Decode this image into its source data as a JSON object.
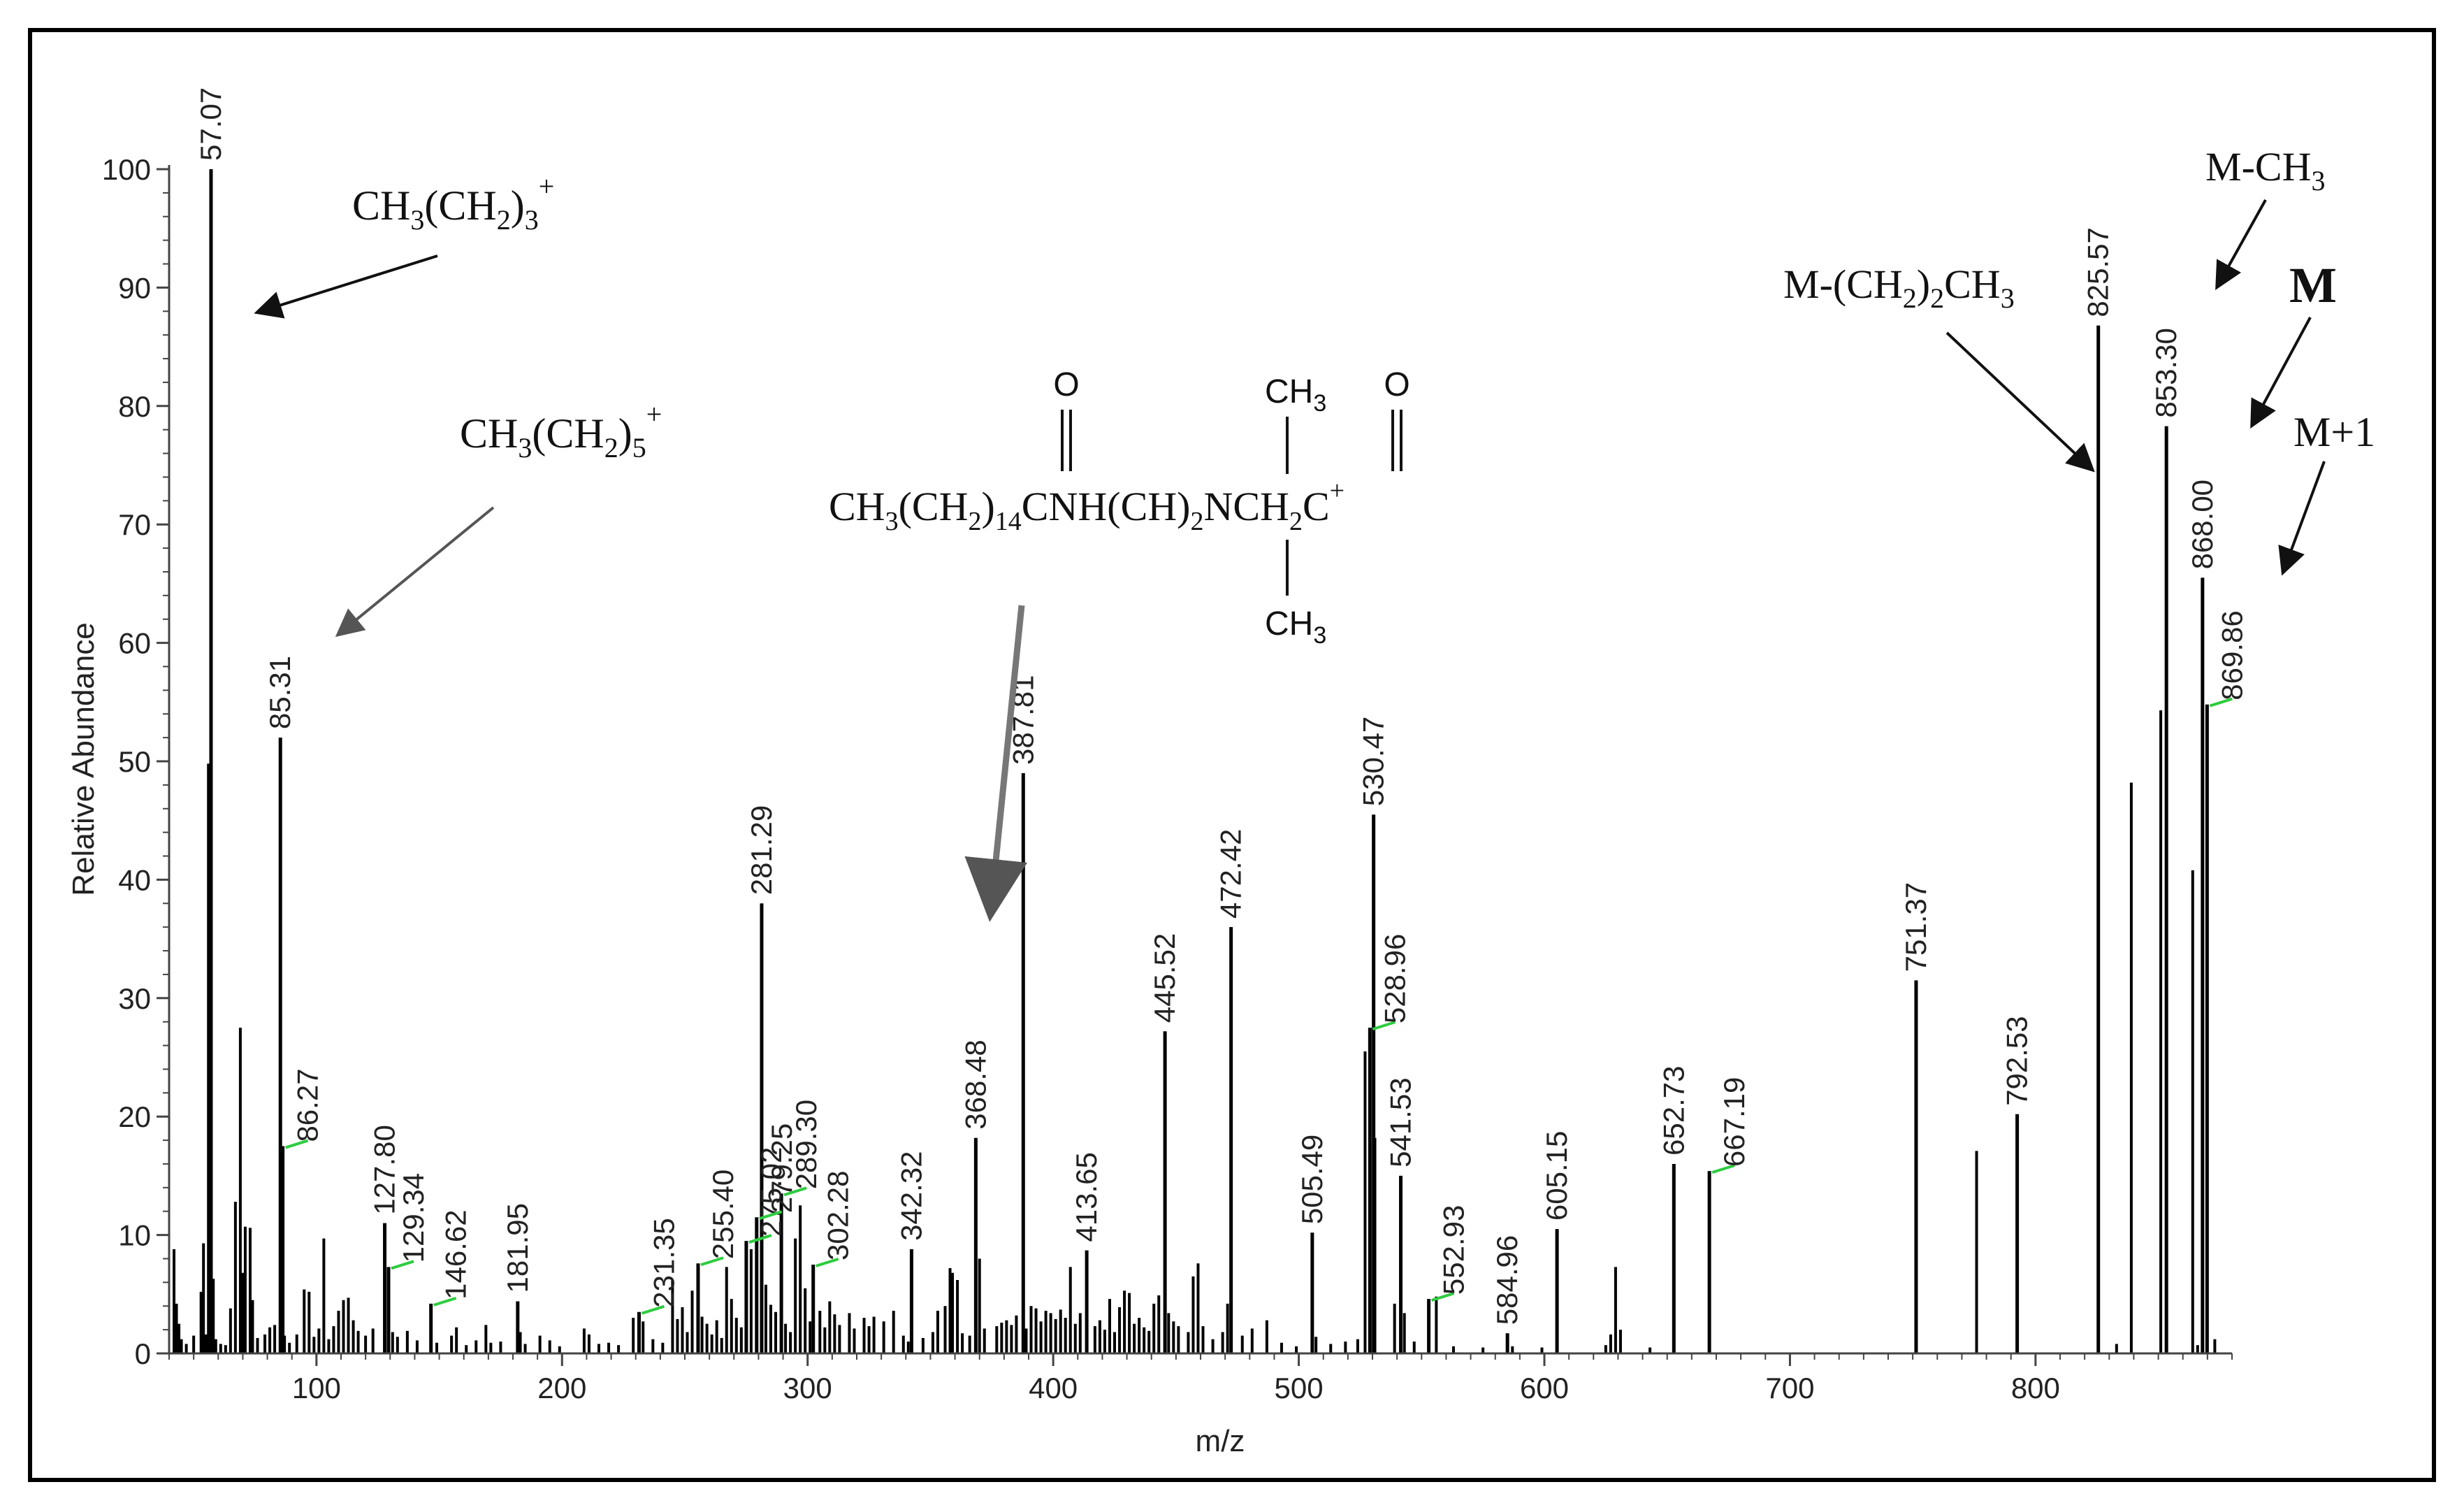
{
  "chart_data": {
    "type": "bar",
    "subtype": "mass-spectrum-stick",
    "xlabel": "m/z",
    "ylabel": "Relative Abundance",
    "xlim": [
      40,
      880
    ],
    "ylim": [
      0,
      100
    ],
    "x_ticks": [
      100,
      200,
      300,
      400,
      500,
      600,
      700,
      800
    ],
    "y_ticks": [
      0,
      10,
      20,
      30,
      40,
      50,
      60,
      70,
      80,
      90,
      100
    ],
    "labeled_peaks": [
      {
        "x": 57.07,
        "y": 100,
        "label": "57.07"
      },
      {
        "x": 85.31,
        "y": 52,
        "label": "85.31"
      },
      {
        "x": 86.27,
        "y": 17.5,
        "label": "86.27",
        "leader": true
      },
      {
        "x": 127.8,
        "y": 11,
        "label": "127.80"
      },
      {
        "x": 129.34,
        "y": 7.3,
        "label": "129.34",
        "leader": true
      },
      {
        "x": 146.62,
        "y": 4.2,
        "label": "146.62",
        "leader": true
      },
      {
        "x": 181.95,
        "y": 4.4,
        "label": "181.95"
      },
      {
        "x": 231.35,
        "y": 3.5,
        "label": "231.35",
        "leader": true
      },
      {
        "x": 255.4,
        "y": 7.6,
        "label": "255.40",
        "leader": true
      },
      {
        "x": 275.02,
        "y": 9.5,
        "label": "275.02",
        "leader": true
      },
      {
        "x": 279.25,
        "y": 11.5,
        "label": "279.25",
        "leader": true
      },
      {
        "x": 281.29,
        "y": 38,
        "label": "281.29"
      },
      {
        "x": 289.3,
        "y": 13.5,
        "label": "289.30",
        "leader": true
      },
      {
        "x": 302.28,
        "y": 7.5,
        "label": "302.28",
        "leader": true
      },
      {
        "x": 342.32,
        "y": 8.8,
        "label": "342.32"
      },
      {
        "x": 368.48,
        "y": 18.2,
        "label": "368.48"
      },
      {
        "x": 387.81,
        "y": 49,
        "label": "387.81"
      },
      {
        "x": 413.65,
        "y": 8.7,
        "label": "413.65"
      },
      {
        "x": 445.52,
        "y": 27.2,
        "label": "445.52"
      },
      {
        "x": 472.42,
        "y": 36,
        "label": "472.42"
      },
      {
        "x": 505.49,
        "y": 10.2,
        "label": "505.49"
      },
      {
        "x": 528.96,
        "y": 27.5,
        "label": "528.96",
        "leader": true
      },
      {
        "x": 530.47,
        "y": 45.5,
        "label": "530.47"
      },
      {
        "x": 541.53,
        "y": 15,
        "label": "541.53"
      },
      {
        "x": 552.93,
        "y": 4.6,
        "label": "552.93",
        "leader": true
      },
      {
        "x": 584.96,
        "y": 1.7,
        "label": "584.96"
      },
      {
        "x": 605.15,
        "y": 10.5,
        "label": "605.15"
      },
      {
        "x": 652.73,
        "y": 16,
        "label": "652.73"
      },
      {
        "x": 667.19,
        "y": 15.4,
        "label": "667.19",
        "leader": true
      },
      {
        "x": 751.37,
        "y": 31.5,
        "label": "751.37"
      },
      {
        "x": 792.53,
        "y": 20.2,
        "label": "792.53"
      },
      {
        "x": 825.57,
        "y": 86.8,
        "label": "825.57"
      },
      {
        "x": 853.3,
        "y": 78.3,
        "label": "853.30"
      },
      {
        "x": 868.0,
        "y": 65.5,
        "label": "868.00"
      },
      {
        "x": 869.86,
        "y": 54.8,
        "label": "869.86",
        "leader": true
      }
    ],
    "unlabeled_peaks": [
      [
        42,
        8.8
      ],
      [
        43,
        4.2
      ],
      [
        44,
        2.5
      ],
      [
        45,
        1.2
      ],
      [
        47,
        0.8
      ],
      [
        50,
        1.5
      ],
      [
        53,
        5.2
      ],
      [
        54,
        9.3
      ],
      [
        55,
        1.6
      ],
      [
        56,
        49.8
      ],
      [
        58,
        6.3
      ],
      [
        59,
        1.2
      ],
      [
        61,
        0.8
      ],
      [
        63,
        0.7
      ],
      [
        65,
        3.8
      ],
      [
        67,
        12.8
      ],
      [
        69,
        27.5
      ],
      [
        70,
        6.8
      ],
      [
        71,
        10.7
      ],
      [
        73,
        10.6
      ],
      [
        74,
        4.5
      ],
      [
        76,
        1.3
      ],
      [
        79,
        1.6
      ],
      [
        81,
        2.2
      ],
      [
        83,
        2.4
      ],
      [
        87,
        1.5
      ],
      [
        89,
        0.9
      ],
      [
        92,
        1.6
      ],
      [
        95,
        5.4
      ],
      [
        97,
        5.2
      ],
      [
        99,
        1.4
      ],
      [
        101,
        2.1
      ],
      [
        103,
        9.7
      ],
      [
        105,
        1.2
      ],
      [
        107,
        2.3
      ],
      [
        109,
        3.6
      ],
      [
        111,
        4.5
      ],
      [
        113,
        4.7
      ],
      [
        115,
        2.8
      ],
      [
        117,
        1.9
      ],
      [
        120,
        1.5
      ],
      [
        123,
        2.1
      ],
      [
        131,
        1.8
      ],
      [
        133,
        1.4
      ],
      [
        137,
        1.9
      ],
      [
        141,
        1.1
      ],
      [
        149,
        0.9
      ],
      [
        155,
        1.5
      ],
      [
        157,
        2.2
      ],
      [
        161,
        0.7
      ],
      [
        165,
        1.1
      ],
      [
        169,
        2.4
      ],
      [
        171,
        0.9
      ],
      [
        175,
        1.0
      ],
      [
        183,
        1.8
      ],
      [
        185,
        0.8
      ],
      [
        191,
        1.5
      ],
      [
        195,
        1.1
      ],
      [
        199,
        0.6
      ],
      [
        209,
        2.1
      ],
      [
        211,
        1.6
      ],
      [
        215,
        0.8
      ],
      [
        219,
        0.9
      ],
      [
        223,
        0.7
      ],
      [
        229,
        3.0
      ],
      [
        233,
        2.7
      ],
      [
        237,
        1.2
      ],
      [
        241,
        0.9
      ],
      [
        245,
        6.2
      ],
      [
        247,
        2.9
      ],
      [
        249,
        3.9
      ],
      [
        251,
        1.8
      ],
      [
        253,
        5.3
      ],
      [
        257,
        3.1
      ],
      [
        259,
        2.5
      ],
      [
        261,
        1.6
      ],
      [
        263,
        2.8
      ],
      [
        265,
        1.3
      ],
      [
        267,
        7.3
      ],
      [
        269,
        4.6
      ],
      [
        271,
        3.0
      ],
      [
        273,
        2.2
      ],
      [
        277,
        8.8
      ],
      [
        283,
        5.8
      ],
      [
        285,
        4.1
      ],
      [
        287,
        3.5
      ],
      [
        291,
        2.5
      ],
      [
        293,
        1.8
      ],
      [
        295,
        9.7
      ],
      [
        297,
        12.5
      ],
      [
        299,
        5.5
      ],
      [
        301,
        2.7
      ],
      [
        305,
        3.6
      ],
      [
        307,
        2.2
      ],
      [
        309,
        4.4
      ],
      [
        311,
        3.3
      ],
      [
        313,
        2.4
      ],
      [
        317,
        3.4
      ],
      [
        319,
        2.1
      ],
      [
        323,
        3.0
      ],
      [
        325,
        2.3
      ],
      [
        327,
        3.1
      ],
      [
        331,
        2.7
      ],
      [
        335,
        3.6
      ],
      [
        339,
        1.5
      ],
      [
        341,
        1.0
      ],
      [
        347,
        1.3
      ],
      [
        351,
        1.8
      ],
      [
        353,
        3.6
      ],
      [
        356,
        4.0
      ],
      [
        358,
        7.2
      ],
      [
        359,
        6.8
      ],
      [
        361,
        6.2
      ],
      [
        363,
        1.7
      ],
      [
        366,
        1.5
      ],
      [
        370,
        8.0
      ],
      [
        372,
        2.1
      ],
      [
        377,
        2.3
      ],
      [
        379,
        2.6
      ],
      [
        381,
        2.8
      ],
      [
        383,
        2.4
      ],
      [
        385,
        3.2
      ],
      [
        389,
        2.1
      ],
      [
        391,
        4.0
      ],
      [
        393,
        3.8
      ],
      [
        395,
        2.7
      ],
      [
        397,
        3.6
      ],
      [
        399,
        3.4
      ],
      [
        401,
        2.9
      ],
      [
        403,
        3.7
      ],
      [
        405,
        3.0
      ],
      [
        407,
        7.3
      ],
      [
        409,
        2.5
      ],
      [
        411,
        3.4
      ],
      [
        417,
        2.3
      ],
      [
        419,
        2.8
      ],
      [
        421,
        2.0
      ],
      [
        423,
        4.6
      ],
      [
        425,
        1.8
      ],
      [
        427,
        3.9
      ],
      [
        429,
        5.3
      ],
      [
        431,
        5.1
      ],
      [
        433,
        2.5
      ],
      [
        435,
        3.0
      ],
      [
        437,
        2.2
      ],
      [
        439,
        1.9
      ],
      [
        441,
        4.2
      ],
      [
        443,
        4.9
      ],
      [
        447,
        3.4
      ],
      [
        449,
        2.7
      ],
      [
        451,
        2.3
      ],
      [
        455,
        1.8
      ],
      [
        457,
        6.5
      ],
      [
        459,
        7.6
      ],
      [
        461,
        2.3
      ],
      [
        465,
        1.2
      ],
      [
        469,
        1.8
      ],
      [
        471,
        4.2
      ],
      [
        477,
        1.5
      ],
      [
        481,
        2.1
      ],
      [
        487,
        2.8
      ],
      [
        493,
        0.9
      ],
      [
        499,
        0.6
      ],
      [
        507,
        1.4
      ],
      [
        513,
        0.8
      ],
      [
        519,
        1.0
      ],
      [
        524,
        1.2
      ],
      [
        527,
        25.5
      ],
      [
        531,
        18.2
      ],
      [
        539,
        4.2
      ],
      [
        543,
        3.4
      ],
      [
        547,
        1.0
      ],
      [
        556,
        4.8
      ],
      [
        563,
        0.6
      ],
      [
        575,
        0.5
      ],
      [
        587,
        0.6
      ],
      [
        599,
        0.5
      ],
      [
        625,
        0.7
      ],
      [
        627,
        1.6
      ],
      [
        629,
        7.3
      ],
      [
        631,
        2.0
      ],
      [
        643,
        0.5
      ],
      [
        776,
        17.1
      ],
      [
        833,
        0.8
      ],
      [
        839,
        48.2
      ],
      [
        851,
        54.3
      ],
      [
        864,
        40.8
      ],
      [
        866,
        0.7
      ],
      [
        873,
        1.2
      ]
    ],
    "annotations": [
      {
        "id": "pentyl",
        "base": "CH",
        "sub1": "3",
        "mid": "(CH",
        "sub2": "2",
        "close": ")",
        "sub3": "3",
        "sup": "+"
      },
      {
        "id": "heptyl",
        "base": "CH",
        "sub1": "3",
        "mid": "(CH",
        "sub2": "2",
        "close": ")",
        "sub3": "5",
        "sup": "+"
      },
      {
        "id": "m-propyl",
        "prefix": "M-(CH",
        "sub1": "2",
        "mid": ")",
        "sub2": "2",
        "suffix": "CH",
        "sub3": "3"
      },
      {
        "id": "m-methyl",
        "prefix": "M-CH",
        "sub1": "3"
      },
      {
        "id": "m",
        "text": "M"
      },
      {
        "id": "m-plus-1",
        "text": "M+1"
      }
    ],
    "structure": {
      "o_left": "O",
      "o_right": "O",
      "ch3_top": "CH",
      "ch3_top_sub": "3",
      "ch3_bottom": "CH",
      "ch3_bottom_sub": "3",
      "main_parts": [
        "CH",
        "3",
        "(CH",
        "2",
        ")",
        "14",
        "CNH(CH)",
        "2",
        "NCH",
        "2",
        "C",
        "+"
      ]
    },
    "colors": {
      "bars": "#000000",
      "leader": "#2ecc40",
      "text": "#222222",
      "arrow": "#111111"
    }
  }
}
